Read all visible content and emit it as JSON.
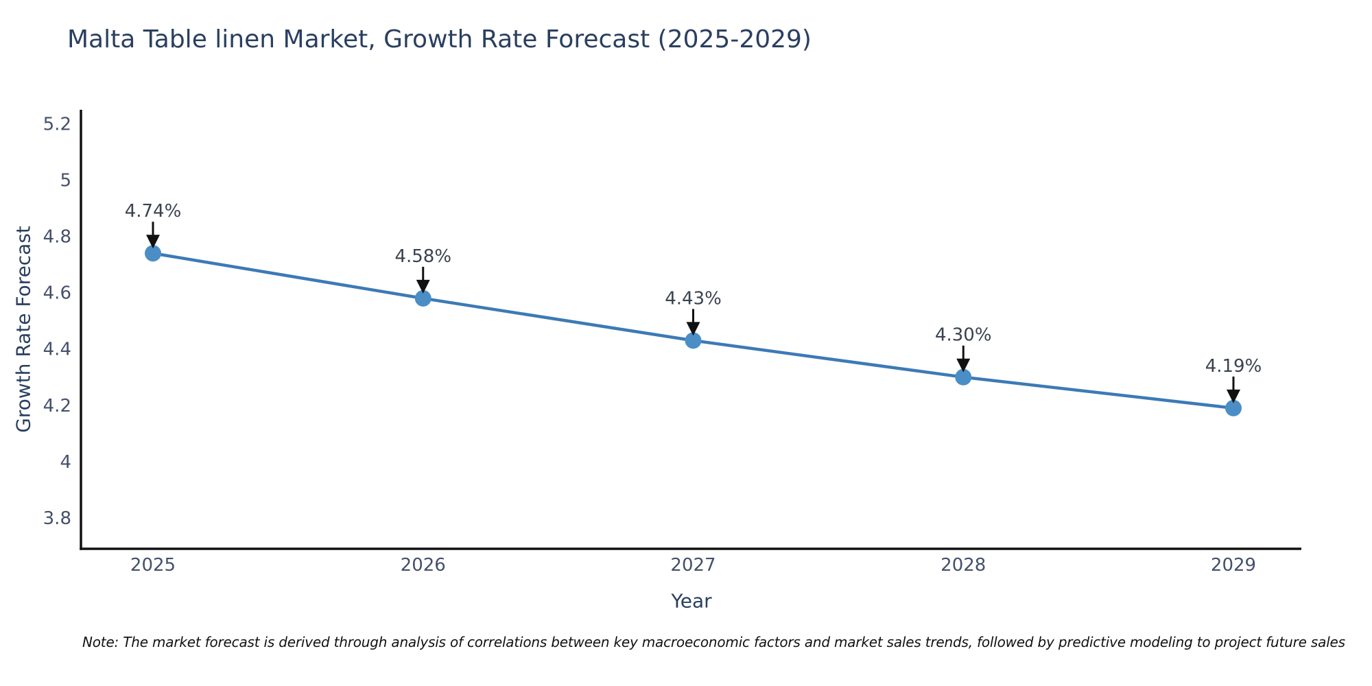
{
  "chart_data": {
    "type": "line",
    "title": "Malta Table linen Market, Growth Rate Forecast (2025-2029)",
    "xlabel": "Year",
    "ylabel": "Growth Rate Forecast",
    "categories": [
      "2025",
      "2026",
      "2027",
      "2028",
      "2029"
    ],
    "series": [
      {
        "name": "Growth Rate Forecast",
        "values": [
          4.74,
          4.58,
          4.43,
          4.3,
          4.19
        ],
        "point_labels": [
          "4.74%",
          "4.58%",
          "4.43%",
          "4.30%",
          "4.19%"
        ]
      }
    ],
    "y_ticks": [
      3.8,
      4.0,
      4.2,
      4.4,
      4.6,
      4.8,
      5.0,
      5.2
    ],
    "y_tick_labels": [
      "3.8",
      "4",
      "4.2",
      "4.4",
      "4.6",
      "4.8",
      "5",
      "5.2"
    ],
    "ylim": [
      3.69,
      5.25
    ],
    "grid": false,
    "legend_position": "none",
    "colors": {
      "line": "#3c7ab5",
      "marker": "#4b8ec6",
      "axis": "#111111",
      "arrow": "#111111",
      "title_text": "#2a3f5f",
      "tick_text": "#44506b",
      "annotation_text": "#3a424f"
    }
  },
  "note": "Note: The market forecast is derived through analysis of correlations between key macroeconomic factors and market sales trends, followed by predictive modeling to project future sales"
}
